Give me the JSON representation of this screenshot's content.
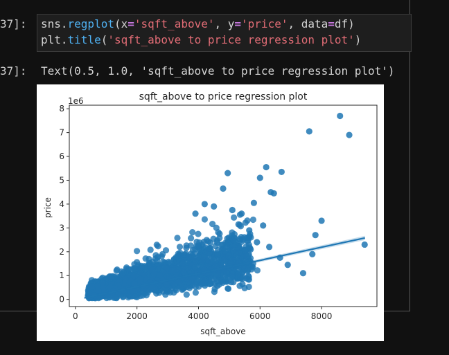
{
  "cell": {
    "input_prompt": "37]:",
    "output_prompt": "37]:",
    "code_line1": {
      "obj": "sns.",
      "func": "regplot",
      "open": "(",
      "k1": "x",
      "eq1": "=",
      "s1": "'sqft_above'",
      "sep1": ", ",
      "k2": "y",
      "eq2": "=",
      "s2": "'price'",
      "sep2": ", ",
      "k3": "data",
      "eq3": "=",
      "v3": "df",
      "close": ")"
    },
    "code_line2": {
      "obj": "plt.",
      "func": "title",
      "open": "(",
      "s1": "'sqft_above to price regression plot'",
      "close": ")"
    },
    "output_text": "Text(0.5, 1.0, 'sqft_above to price regression plot')"
  },
  "chart_data": {
    "type": "scatter",
    "title": "sqft_above to price regression plot",
    "xlabel": "sqft_above",
    "ylabel": "price",
    "y_offset_label": "1e6",
    "xlim": [
      -200,
      9800
    ],
    "ylim": [
      -0.3,
      8.15
    ],
    "xticks": [
      0,
      2000,
      4000,
      6000,
      8000
    ],
    "xtick_labels": [
      "0",
      "2000",
      "4000",
      "6000",
      "8000"
    ],
    "yticks": [
      0,
      1,
      2,
      3,
      4,
      5,
      6,
      7,
      8
    ],
    "ytick_labels": [
      "0",
      "1",
      "2",
      "3",
      "4",
      "5",
      "6",
      "7",
      "8"
    ],
    "point_color": "#1f77b4",
    "regression_line": {
      "x": [
        290,
        9410
      ],
      "y": [
        0.06,
        2.58
      ]
    },
    "outliers": [
      {
        "x": 8600,
        "y": 7.7
      },
      {
        "x": 7600,
        "y": 7.05
      },
      {
        "x": 8900,
        "y": 6.9
      },
      {
        "x": 6200,
        "y": 5.55
      },
      {
        "x": 6700,
        "y": 5.35
      },
      {
        "x": 4950,
        "y": 5.3
      },
      {
        "x": 6000,
        "y": 5.1
      },
      {
        "x": 6350,
        "y": 4.5
      },
      {
        "x": 6450,
        "y": 4.45
      },
      {
        "x": 4800,
        "y": 4.65
      },
      {
        "x": 5800,
        "y": 4.05
      },
      {
        "x": 9400,
        "y": 2.3
      },
      {
        "x": 8000,
        "y": 3.3
      },
      {
        "x": 7800,
        "y": 2.7
      },
      {
        "x": 7700,
        "y": 1.9
      },
      {
        "x": 7400,
        "y": 1.1
      },
      {
        "x": 6650,
        "y": 1.75
      },
      {
        "x": 6100,
        "y": 3.1
      },
      {
        "x": 5650,
        "y": 2.9
      },
      {
        "x": 5400,
        "y": 3.6
      },
      {
        "x": 4500,
        "y": 3.9
      },
      {
        "x": 5100,
        "y": 3.75
      },
      {
        "x": 3900,
        "y": 3.6
      },
      {
        "x": 6300,
        "y": 2.2
      },
      {
        "x": 6900,
        "y": 1.45
      },
      {
        "x": 5900,
        "y": 2.4
      },
      {
        "x": 4200,
        "y": 4.0
      }
    ]
  }
}
